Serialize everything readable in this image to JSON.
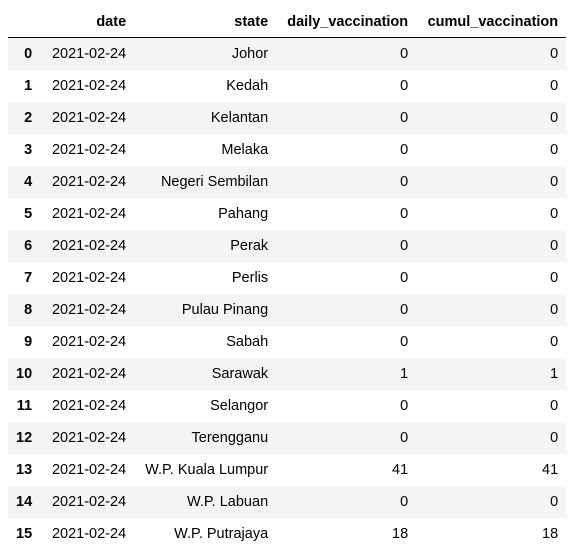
{
  "table": {
    "columns": [
      "",
      "date",
      "state",
      "daily_vaccination",
      "cumul_vaccination"
    ],
    "rows": [
      {
        "index": "0",
        "date": "2021-02-24",
        "state": "Johor",
        "daily_vaccination": "0",
        "cumul_vaccination": "0"
      },
      {
        "index": "1",
        "date": "2021-02-24",
        "state": "Kedah",
        "daily_vaccination": "0",
        "cumul_vaccination": "0"
      },
      {
        "index": "2",
        "date": "2021-02-24",
        "state": "Kelantan",
        "daily_vaccination": "0",
        "cumul_vaccination": "0"
      },
      {
        "index": "3",
        "date": "2021-02-24",
        "state": "Melaka",
        "daily_vaccination": "0",
        "cumul_vaccination": "0"
      },
      {
        "index": "4",
        "date": "2021-02-24",
        "state": "Negeri Sembilan",
        "daily_vaccination": "0",
        "cumul_vaccination": "0"
      },
      {
        "index": "5",
        "date": "2021-02-24",
        "state": "Pahang",
        "daily_vaccination": "0",
        "cumul_vaccination": "0"
      },
      {
        "index": "6",
        "date": "2021-02-24",
        "state": "Perak",
        "daily_vaccination": "0",
        "cumul_vaccination": "0"
      },
      {
        "index": "7",
        "date": "2021-02-24",
        "state": "Perlis",
        "daily_vaccination": "0",
        "cumul_vaccination": "0"
      },
      {
        "index": "8",
        "date": "2021-02-24",
        "state": "Pulau Pinang",
        "daily_vaccination": "0",
        "cumul_vaccination": "0"
      },
      {
        "index": "9",
        "date": "2021-02-24",
        "state": "Sabah",
        "daily_vaccination": "0",
        "cumul_vaccination": "0"
      },
      {
        "index": "10",
        "date": "2021-02-24",
        "state": "Sarawak",
        "daily_vaccination": "1",
        "cumul_vaccination": "1"
      },
      {
        "index": "11",
        "date": "2021-02-24",
        "state": "Selangor",
        "daily_vaccination": "0",
        "cumul_vaccination": "0"
      },
      {
        "index": "12",
        "date": "2021-02-24",
        "state": "Terengganu",
        "daily_vaccination": "0",
        "cumul_vaccination": "0"
      },
      {
        "index": "13",
        "date": "2021-02-24",
        "state": "W.P. Kuala Lumpur",
        "daily_vaccination": "41",
        "cumul_vaccination": "41"
      },
      {
        "index": "14",
        "date": "2021-02-24",
        "state": "W.P. Labuan",
        "daily_vaccination": "0",
        "cumul_vaccination": "0"
      },
      {
        "index": "15",
        "date": "2021-02-24",
        "state": "W.P. Putrajaya",
        "daily_vaccination": "18",
        "cumul_vaccination": "18"
      }
    ]
  }
}
